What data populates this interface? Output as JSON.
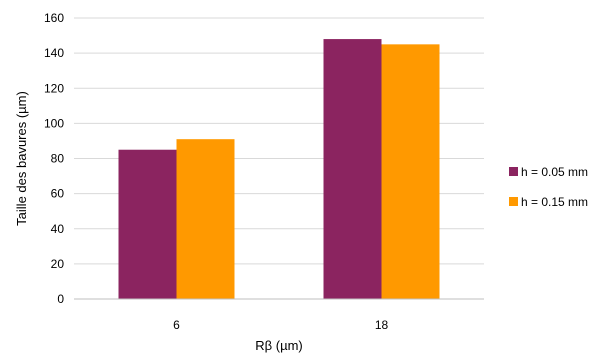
{
  "chart_data": {
    "type": "bar",
    "categories": [
      "6",
      "18"
    ],
    "series": [
      {
        "name": "h = 0.05 mm",
        "values": [
          85,
          148
        ],
        "color": "#8B2460"
      },
      {
        "name": "h = 0.15 mm",
        "values": [
          91,
          145
        ],
        "color": "#FF9900"
      }
    ],
    "xlabel": "Rβ (µm)",
    "ylabel": "Taille des bavures (µm)",
    "ylim": [
      0,
      160
    ],
    "yticks": [
      0,
      20,
      40,
      60,
      80,
      100,
      120,
      140,
      160
    ],
    "grid": true,
    "legend_position": "right"
  }
}
